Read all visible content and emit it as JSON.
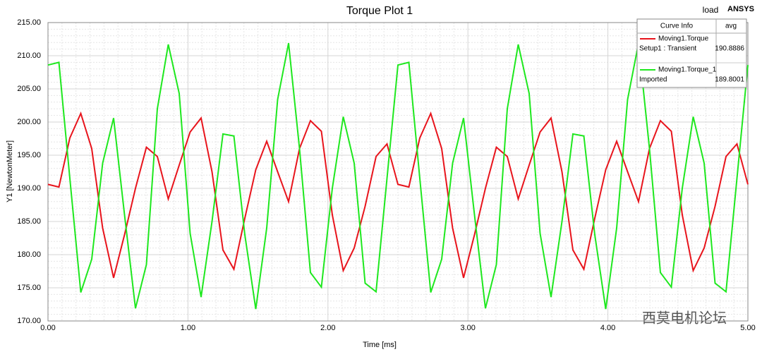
{
  "chart_data": {
    "type": "line",
    "title": "Torque Plot 1",
    "corner_label": "load",
    "brand": "ANSYS",
    "watermark": "西莫电机论坛",
    "x_label": "Time [ms]",
    "y_label": "Y1 [NewtonMeter]",
    "xlim": [
      0,
      5
    ],
    "ylim": [
      170,
      215
    ],
    "xticks": [
      {
        "value": 0,
        "label": "0.00"
      },
      {
        "value": 1,
        "label": "1.00"
      },
      {
        "value": 2,
        "label": "2.00"
      },
      {
        "value": 3,
        "label": "3.00"
      },
      {
        "value": 4,
        "label": "4.00"
      },
      {
        "value": 5,
        "label": "5.00"
      }
    ],
    "yticks": [
      {
        "value": 170,
        "label": "170.00"
      },
      {
        "value": 175,
        "label": "175.00"
      },
      {
        "value": 180,
        "label": "180.00"
      },
      {
        "value": 185,
        "label": "185.00"
      },
      {
        "value": 190,
        "label": "190.00"
      },
      {
        "value": 195,
        "label": "195.00"
      },
      {
        "value": 200,
        "label": "200.00"
      },
      {
        "value": 205,
        "label": "205.00"
      },
      {
        "value": 210,
        "label": "210.00"
      },
      {
        "value": 215,
        "label": "215.00"
      }
    ],
    "grid": true,
    "legend_header": [
      "Curve Info",
      "avg"
    ],
    "x": [
      0,
      0.078125,
      0.15625,
      0.234375,
      0.3125,
      0.390625,
      0.46875,
      0.546875,
      0.625,
      0.703125,
      0.78125,
      0.859375,
      0.9375,
      1.015625,
      1.09375,
      1.171875,
      1.25,
      1.328125,
      1.40625,
      1.484375,
      1.5625,
      1.640625,
      1.71875,
      1.796875,
      1.875,
      1.953125,
      2.03125,
      2.109375,
      2.1875,
      2.265625,
      2.34375,
      2.421875,
      2.5,
      2.578125,
      2.65625,
      2.734375,
      2.8125,
      2.890625,
      2.96875,
      3.046875,
      3.125,
      3.203125,
      3.28125,
      3.359375,
      3.4375,
      3.515625,
      3.59375,
      3.671875,
      3.75,
      3.828125,
      3.90625,
      3.984375,
      4.0625,
      4.140625,
      4.21875,
      4.296875,
      4.375,
      4.453125,
      4.53125,
      4.609375,
      4.6875,
      4.765625,
      4.84375,
      4.921875,
      5
    ],
    "series": [
      {
        "name": "Moving1.Torque",
        "solution": "Setup1 : Transient",
        "avg": 190.8886,
        "color": "#e8141c",
        "values": [
          190.6,
          190.2,
          197.6,
          201.3,
          196.0,
          184.0,
          176.5,
          183.0,
          190.0,
          196.2,
          194.8,
          188.4,
          193.5,
          198.5,
          200.6,
          192.5,
          180.7,
          177.8,
          185.5,
          192.8,
          197.1,
          192.5,
          188.0,
          196.0,
          200.2,
          198.6,
          186.0,
          177.6,
          181.0,
          187.3,
          194.8,
          196.7,
          190.6,
          190.2,
          197.6,
          201.3,
          196.0,
          184.0,
          176.5,
          183.0,
          190.0,
          196.2,
          194.8,
          188.4,
          193.5,
          198.5,
          200.6,
          192.5,
          180.7,
          177.8,
          185.5,
          192.8,
          197.1,
          192.5,
          188.0,
          196.0,
          200.2,
          198.6,
          186.0,
          177.6,
          181.0,
          187.3,
          194.8,
          196.7,
          190.6
        ]
      },
      {
        "name": "Moving1.Torque_1",
        "solution": "Imported",
        "avg": 189.8001,
        "color": "#1ee81e",
        "values": [
          208.6,
          209.0,
          191.5,
          174.3,
          179.3,
          193.8,
          200.6,
          186.0,
          171.9,
          178.5,
          202.0,
          211.7,
          204.3,
          183.2,
          173.6,
          185.0,
          198.2,
          197.9,
          183.0,
          171.8,
          184.0,
          203.4,
          211.9,
          196.0,
          177.3,
          175.1,
          190.0,
          200.8,
          193.8,
          175.7,
          174.4,
          191.5,
          208.6,
          209.0,
          191.5,
          174.3,
          179.3,
          193.8,
          200.6,
          186.0,
          171.9,
          178.5,
          202.0,
          211.7,
          204.3,
          183.2,
          173.6,
          185.0,
          198.2,
          197.9,
          183.0,
          171.8,
          184.0,
          203.4,
          211.9,
          196.0,
          177.3,
          175.1,
          190.0,
          200.8,
          193.8,
          175.7,
          174.4,
          191.5,
          208.6
        ]
      }
    ]
  }
}
